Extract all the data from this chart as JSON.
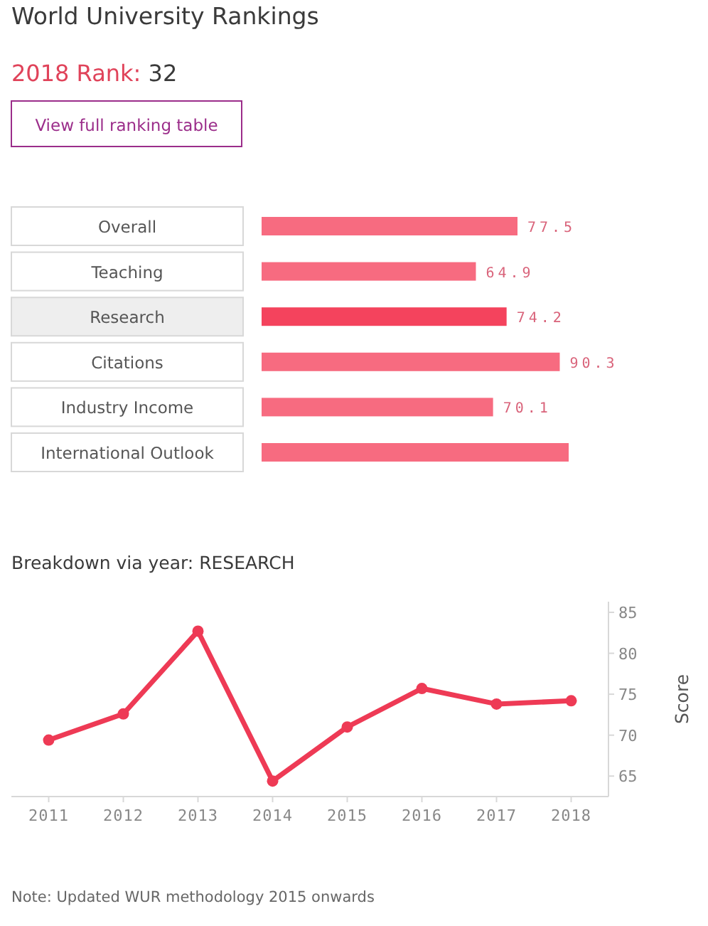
{
  "chart_data": [
    {
      "type": "bar",
      "orientation": "horizontal",
      "title": "World University Rankings",
      "subtitle": "2018 Rank: 32",
      "annotations": [
        "View full ranking table"
      ],
      "categories": [
        "Overall",
        "Teaching",
        "Research",
        "Citations",
        "Industry Income",
        "International Outlook"
      ],
      "values": [
        77.5,
        64.9,
        74.2,
        90.3,
        70.1,
        93
      ],
      "value_labels": [
        "77.5",
        "64.9",
        "74.2",
        "90.3",
        "70.1",
        null
      ],
      "colors": [
        "#f76b80",
        "#f76b80",
        "#f4435d",
        "#f76b80",
        "#f76b80",
        "#f76b80"
      ]
    },
    {
      "type": "line",
      "title": "Breakdown via year: RESEARCH",
      "ylabel": "Score",
      "annotations": [
        "Note: Updated WUR methodology 2015 onwards"
      ],
      "categories": [
        "2011",
        "2012",
        "2013",
        "2014",
        "2015",
        "2016",
        "2017",
        "2018"
      ],
      "series": [
        {
          "color": "#ee3a55",
          "values": [
            69.4,
            72.6,
            82.7,
            64.4,
            71.0,
            75.7,
            73.8,
            74.2
          ]
        }
      ],
      "ylim": [
        62.5,
        86.3
      ],
      "yticks": [
        65,
        70,
        75,
        80,
        85
      ],
      "marker": "circle",
      "line_style": "solid",
      "grid": false
    }
  ]
}
